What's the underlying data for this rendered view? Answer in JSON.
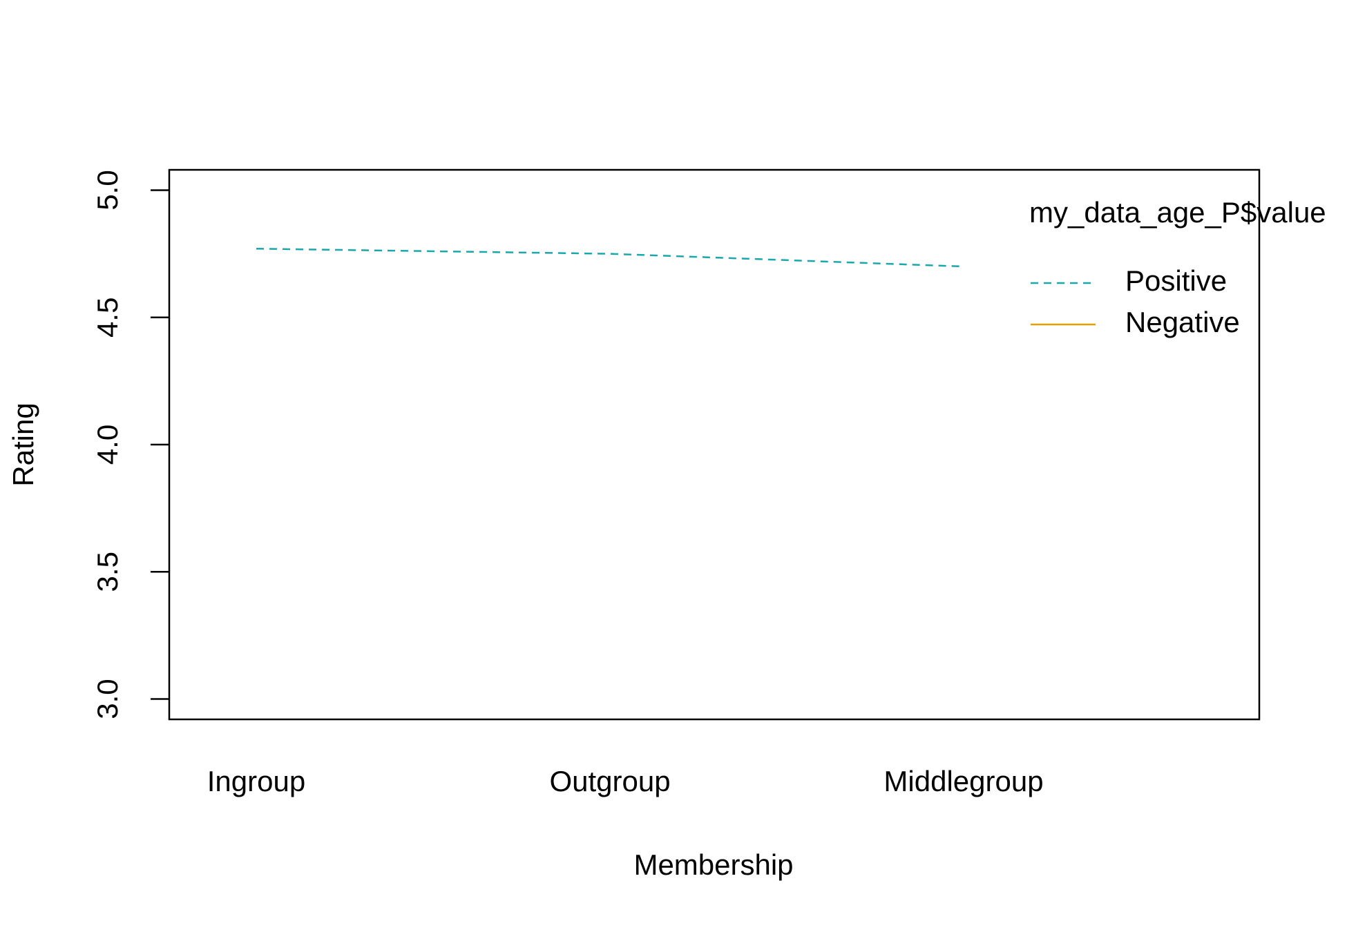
{
  "chart_data": {
    "type": "line",
    "x_label": "Membership",
    "y_label": "Rating",
    "legend_title": "my_data_age_P$value",
    "categories": [
      "Ingroup",
      "Outgroup",
      "Middlegroup"
    ],
    "series": [
      {
        "name": "Positive",
        "color": "#1aa7ab",
        "dash": true,
        "values": [
          4.77,
          4.75,
          4.7
        ]
      },
      {
        "name": "Negative",
        "color": "#e69f00",
        "dash": false,
        "values": [
          null,
          null,
          null
        ]
      }
    ],
    "ylim": [
      2.92,
      5.08
    ],
    "yticks": [
      {
        "value": 3,
        "label": "3.0"
      },
      {
        "value": 3.5,
        "label": "3.5"
      },
      {
        "value": 4,
        "label": "4.0"
      },
      {
        "value": 4.5,
        "label": "4.5"
      },
      {
        "value": 5,
        "label": "5.0"
      }
    ],
    "legend_position": "top-right"
  }
}
